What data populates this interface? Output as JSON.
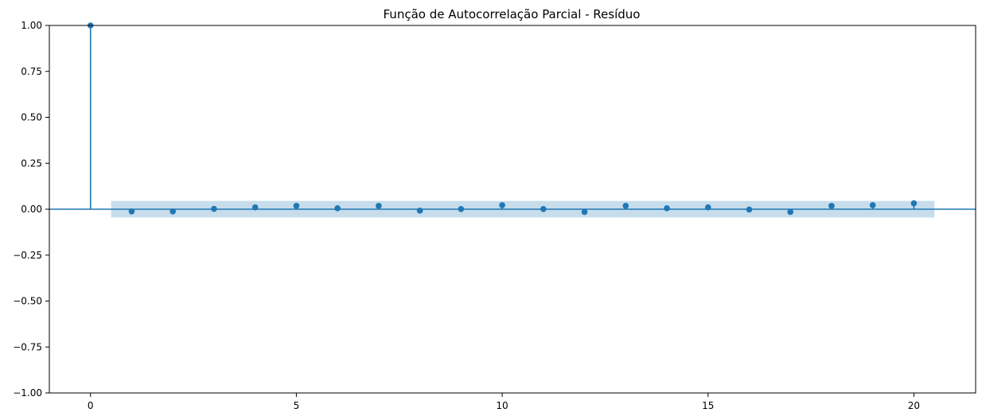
{
  "chart_data": {
    "type": "stem",
    "title": "Função de Autocorrelação Parcial - Resíduo",
    "xlabel": "",
    "ylabel": "",
    "xlim": [
      -1,
      21.5
    ],
    "ylim": [
      -1.0,
      1.0
    ],
    "x_ticks": [
      0,
      5,
      10,
      15,
      20
    ],
    "x_tick_labels": [
      "0",
      "5",
      "10",
      "15",
      "20"
    ],
    "y_ticks": [
      1.0,
      0.75,
      0.5,
      0.25,
      0.0,
      -0.25,
      -0.5,
      -0.75,
      -1.0
    ],
    "y_tick_labels": [
      "1.00",
      "0.75",
      "0.50",
      "0.25",
      "0.00",
      "−0.25",
      "−0.50",
      "−0.75",
      "−1.00"
    ],
    "grid": false,
    "confidence_band": {
      "x_range": [
        0.5,
        20.5
      ],
      "lower": -0.045,
      "upper": 0.045
    },
    "series": [
      {
        "lags": [
          0,
          1,
          2,
          3,
          4,
          5,
          6,
          7,
          8,
          9,
          10,
          11,
          12,
          13,
          14,
          15,
          16,
          17,
          18,
          19,
          20
        ],
        "values": [
          1.0,
          -0.012,
          -0.012,
          0.002,
          0.01,
          0.018,
          0.005,
          0.018,
          -0.008,
          0.001,
          0.022,
          0.001,
          -0.015,
          0.018,
          0.005,
          0.01,
          -0.002,
          -0.015,
          0.018,
          0.022,
          0.032
        ]
      }
    ],
    "colors": {
      "series": "#1f77b4",
      "band": "#1f77b4"
    }
  }
}
